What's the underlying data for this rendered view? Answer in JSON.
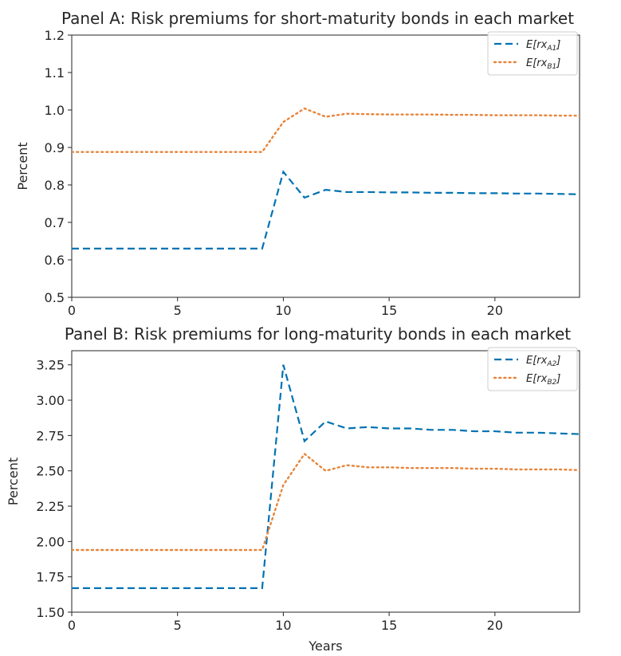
{
  "chart_data": [
    {
      "type": "line",
      "title": "Panel A: Risk premiums for short-maturity bonds in each market",
      "xlabel": "",
      "ylabel": "Percent",
      "xlim": [
        0,
        24
      ],
      "ylim": [
        0.5,
        1.2
      ],
      "xticks": [
        0,
        5,
        10,
        15,
        20
      ],
      "xtick_labels": [
        "0",
        "5",
        "10",
        "15",
        "20"
      ],
      "yticks": [
        0.5,
        0.6,
        0.7,
        0.8,
        0.9,
        1.0,
        1.1,
        1.2
      ],
      "ytick_labels": [
        "0.5",
        "0.6",
        "0.7",
        "0.8",
        "0.9",
        "1.0",
        "1.1",
        "1.2"
      ],
      "legend_position": "top-right",
      "grid": false,
      "x": [
        0,
        1,
        2,
        3,
        4,
        5,
        6,
        7,
        8,
        9,
        10,
        11,
        12,
        13,
        14,
        15,
        16,
        17,
        18,
        19,
        20,
        21,
        22,
        23,
        24
      ],
      "series": [
        {
          "name": "E[rx_A1]",
          "legend_main": "E[rx",
          "legend_sub": "A1",
          "legend_end": "]",
          "color": "#0072b2",
          "style": "dashed",
          "values": [
            0.63,
            0.63,
            0.63,
            0.63,
            0.63,
            0.63,
            0.63,
            0.63,
            0.63,
            0.63,
            0.835,
            0.766,
            0.787,
            0.781,
            0.781,
            0.78,
            0.78,
            0.779,
            0.779,
            0.778,
            0.778,
            0.777,
            0.777,
            0.776,
            0.775
          ]
        },
        {
          "name": "E[rx_B1]",
          "legend_main": "E[rx",
          "legend_sub": "B1",
          "legend_end": "]",
          "color": "#e8843a",
          "style": "dotted",
          "values": [
            0.888,
            0.888,
            0.888,
            0.888,
            0.888,
            0.888,
            0.888,
            0.888,
            0.888,
            0.888,
            0.968,
            1.004,
            0.982,
            0.99,
            0.989,
            0.988,
            0.988,
            0.988,
            0.987,
            0.987,
            0.986,
            0.986,
            0.986,
            0.985,
            0.985
          ]
        }
      ]
    },
    {
      "type": "line",
      "title": "Panel B: Risk premiums for long-maturity bonds in each market",
      "xlabel": "Years",
      "ylabel": "Percent",
      "xlim": [
        0,
        24
      ],
      "ylim": [
        1.5,
        3.35
      ],
      "xticks": [
        0,
        5,
        10,
        15,
        20
      ],
      "xtick_labels": [
        "0",
        "5",
        "10",
        "15",
        "20"
      ],
      "yticks": [
        1.5,
        1.75,
        2.0,
        2.25,
        2.5,
        2.75,
        3.0,
        3.25
      ],
      "ytick_labels": [
        "1.50",
        "1.75",
        "2.00",
        "2.25",
        "2.50",
        "2.75",
        "3.00",
        "3.25"
      ],
      "legend_position": "top-right",
      "grid": false,
      "x": [
        0,
        1,
        2,
        3,
        4,
        5,
        6,
        7,
        8,
        9,
        10,
        11,
        12,
        13,
        14,
        15,
        16,
        17,
        18,
        19,
        20,
        21,
        22,
        23,
        24
      ],
      "series": [
        {
          "name": "E[rx_A2]",
          "legend_main": "E[rx",
          "legend_sub": "A2",
          "legend_end": "]",
          "color": "#0072b2",
          "style": "dashed",
          "values": [
            1.67,
            1.67,
            1.67,
            1.67,
            1.67,
            1.67,
            1.67,
            1.67,
            1.67,
            1.67,
            3.25,
            2.71,
            2.85,
            2.8,
            2.81,
            2.8,
            2.8,
            2.79,
            2.79,
            2.78,
            2.78,
            2.77,
            2.77,
            2.765,
            2.76
          ]
        },
        {
          "name": "E[rx_B2]",
          "legend_main": "E[rx",
          "legend_sub": "B2",
          "legend_end": "]",
          "color": "#e8843a",
          "style": "dotted",
          "values": [
            1.94,
            1.94,
            1.94,
            1.94,
            1.94,
            1.94,
            1.94,
            1.94,
            1.94,
            1.94,
            2.4,
            2.62,
            2.5,
            2.54,
            2.525,
            2.525,
            2.52,
            2.52,
            2.52,
            2.515,
            2.515,
            2.51,
            2.51,
            2.51,
            2.505
          ]
        }
      ]
    }
  ]
}
